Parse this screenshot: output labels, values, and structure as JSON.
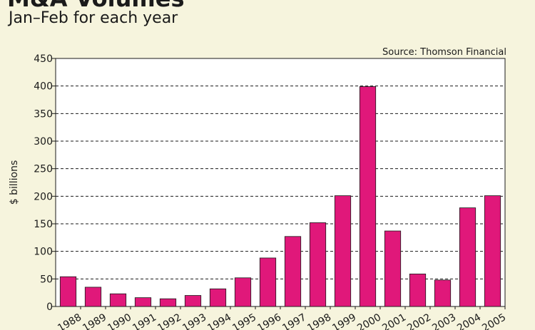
{
  "header": {
    "title": "M&A Volumes",
    "subtitle": "Jan–Feb for each year"
  },
  "chart_data": {
    "type": "bar",
    "title": "M&A Volumes",
    "subtitle": "Jan–Feb for each year",
    "source": "Source: Thomson Financial",
    "xlabel": "",
    "ylabel": "$ billions",
    "ylim": [
      0,
      450
    ],
    "yticks": [
      0,
      50,
      100,
      150,
      200,
      250,
      300,
      350,
      400,
      450
    ],
    "grid": true,
    "bar_color": "#e0187a",
    "categories": [
      "1988",
      "1989",
      "1990",
      "1991",
      "1992",
      "1993",
      "1994",
      "1995",
      "1996",
      "1997",
      "1998",
      "1999",
      "2000",
      "2001",
      "2002",
      "2003",
      "2004",
      "2005"
    ],
    "values": [
      54,
      35,
      23,
      16,
      14,
      20,
      32,
      52,
      88,
      127,
      152,
      201,
      399,
      137,
      59,
      48,
      179,
      201
    ]
  }
}
